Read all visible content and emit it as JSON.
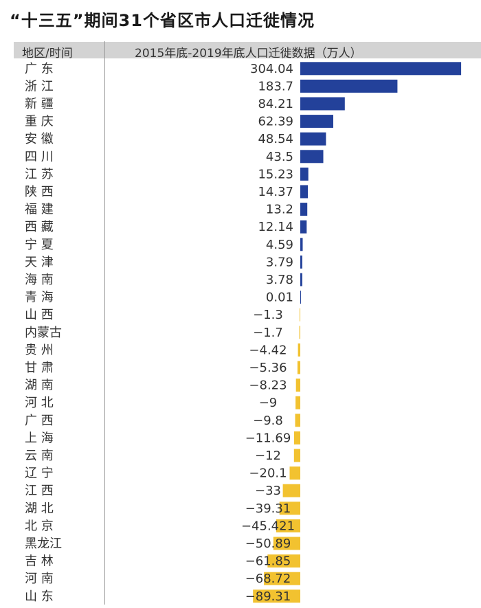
{
  "title": "“十三五”期间31个省区市人口迁徙情况",
  "header": {
    "left": "地区/时间",
    "right": "2015年底-2019年底人口迁徙数据（万人）"
  },
  "colors": {
    "positive": "#23419a",
    "negative": "#f2c230",
    "header_bg": "#d3d3d3"
  },
  "chart_data": {
    "type": "bar",
    "orientation": "horizontal",
    "title": "“十三五”期间31个省区市人口迁徙情况",
    "xlabel": "2015年底-2019年底人口迁徙数据（万人）",
    "ylabel": "地区/时间",
    "categories": [
      "广 东",
      "浙 江",
      "新 疆",
      "重 庆",
      "安 徽",
      "四 川",
      "江 苏",
      "陕 西",
      "福 建",
      "西 藏",
      "宁 夏",
      "天 津",
      "海 南",
      "青 海",
      "山 西",
      "内蒙古",
      "贵 州",
      "甘 肃",
      "湖 南",
      "河 北",
      "广 西",
      "上 海",
      "云 南",
      "辽 宁",
      "江 西",
      "湖 北",
      "北 京",
      "黑龙江",
      "吉 林",
      "河 南",
      "山 东"
    ],
    "values": [
      304.04,
      183.7,
      84.21,
      62.39,
      48.54,
      43.5,
      15.23,
      14.37,
      13.2,
      12.14,
      4.59,
      3.79,
      3.78,
      0.01,
      -1.3,
      -1.7,
      -4.42,
      -5.36,
      -8.23,
      -9,
      -9.8,
      -11.69,
      -12,
      -20.1,
      -33,
      -39.31,
      -45.421,
      -50.89,
      -61.85,
      -68.72,
      -89.31
    ],
    "labels": [
      "304.04",
      "183.7",
      "84.21",
      "62.39",
      "48.54",
      "43.5",
      "15.23",
      "14.37",
      "13.2",
      "12.14",
      "4.59",
      "3.79",
      "3.78",
      "0.01",
      "−1.3",
      "−1.7",
      "−4.42",
      "−5.36",
      "−8.23",
      "−9",
      "−9.8",
      "−11.69",
      "−12",
      "−20.1",
      "−33",
      "−39.31",
      "−45.421",
      "−50.89",
      "−61.85",
      "−68.72",
      "−89.31"
    ],
    "grid": false,
    "legend": "none"
  }
}
